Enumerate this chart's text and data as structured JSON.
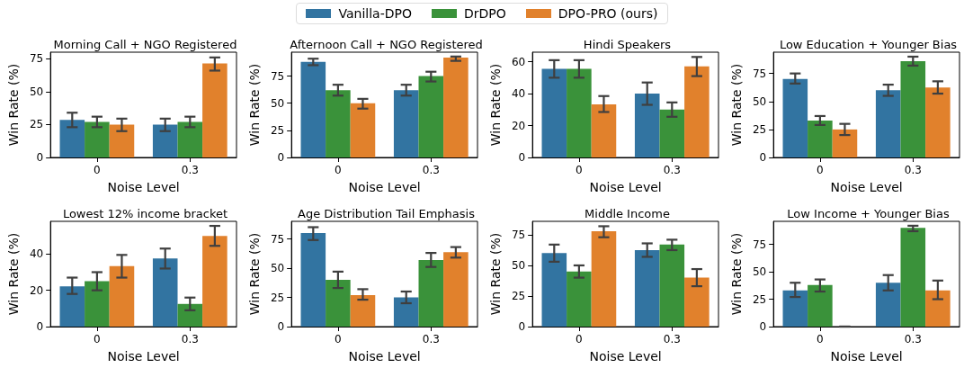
{
  "chart_data": [
    {
      "type": "bar",
      "title": "Morning Call + NGO Registered",
      "xlabel": "Noise Level",
      "ylabel": "Win Rate (%)",
      "categories": [
        "0",
        "0.3"
      ],
      "legend": "top",
      "ylim": [
        0,
        80
      ],
      "yticks": [
        0,
        25,
        50,
        75
      ],
      "series": [
        {
          "name": "Vanilla-DPO",
          "color": "#3274a1",
          "values": [
            28.6,
            25
          ],
          "errors": [
            [
              23,
              34
            ],
            [
              20,
              29.5
            ]
          ]
        },
        {
          "name": "DrDPO",
          "color": "#3a923a",
          "values": [
            27,
            27
          ],
          "errors": [
            [
              23,
              31
            ],
            [
              23,
              31
            ]
          ]
        },
        {
          "name": "DPO-PRO (ours)",
          "color": "#e1812c",
          "values": [
            25,
            71.4
          ],
          "errors": [
            [
              20,
              29.5
            ],
            [
              66,
              76
            ]
          ]
        }
      ]
    },
    {
      "type": "bar",
      "title": "Afternoon Call + NGO Registered",
      "xlabel": "Noise Level",
      "ylabel": "Win Rate (%)",
      "categories": [
        "0",
        "0.3"
      ],
      "ylim": [
        0,
        97
      ],
      "yticks": [
        0,
        25,
        50,
        75
      ],
      "series": [
        {
          "color": "#3274a1",
          "values": [
            88,
            62
          ],
          "errors": [
            [
              85,
              91
            ],
            [
              57,
              67
            ]
          ]
        },
        {
          "color": "#3a923a",
          "values": [
            62,
            75
          ],
          "errors": [
            [
              57,
              67
            ],
            [
              70,
              79
            ]
          ]
        },
        {
          "color": "#e1812c",
          "values": [
            50,
            92
          ],
          "errors": [
            [
              45,
              54
            ],
            [
              89,
              93
            ]
          ]
        }
      ]
    },
    {
      "type": "bar",
      "title": "Hindi Speakers",
      "xlabel": "Noise Level",
      "ylabel": "Win Rate (%)",
      "categories": [
        "0",
        "0.3"
      ],
      "ylim": [
        0,
        66
      ],
      "yticks": [
        0,
        20,
        40,
        60
      ],
      "series": [
        {
          "color": "#3274a1",
          "values": [
            55.6,
            40
          ],
          "errors": [
            [
              50,
              61
            ],
            [
              33,
              47
            ]
          ]
        },
        {
          "color": "#3a923a",
          "values": [
            55.6,
            30
          ],
          "errors": [
            [
              50,
              61
            ],
            [
              25.5,
              34.5
            ]
          ]
        },
        {
          "color": "#e1812c",
          "values": [
            33.3,
            57.1
          ],
          "errors": [
            [
              28.5,
              38.5
            ],
            [
              51,
              63
            ]
          ]
        }
      ]
    },
    {
      "type": "bar",
      "title": "Low Education + Younger Bias",
      "xlabel": "Noise Level",
      "ylabel": "Win Rate (%)",
      "categories": [
        "0",
        "0.3"
      ],
      "ylim": [
        0,
        94
      ],
      "yticks": [
        0,
        25,
        50,
        75
      ],
      "series": [
        {
          "color": "#3274a1",
          "values": [
            70,
            60
          ],
          "errors": [
            [
              66,
              75
            ],
            [
              55,
              65
            ]
          ]
        },
        {
          "color": "#3a923a",
          "values": [
            33,
            86
          ],
          "errors": [
            [
              29,
              37
            ],
            [
              82,
              90
            ]
          ]
        },
        {
          "color": "#e1812c",
          "values": [
            25,
            62.5
          ],
          "errors": [
            [
              20,
              30
            ],
            [
              57,
              68
            ]
          ]
        }
      ]
    },
    {
      "type": "bar",
      "title": "Lowest 12% income bracket",
      "xlabel": "Noise Level",
      "ylabel": "Win Rate (%)",
      "categories": [
        "0",
        "0.3"
      ],
      "ylim": [
        0,
        58
      ],
      "yticks": [
        0,
        20,
        40
      ],
      "series": [
        {
          "color": "#3274a1",
          "values": [
            22.2,
            37.5
          ],
          "errors": [
            [
              18,
              27
            ],
            [
              32,
              43
            ]
          ]
        },
        {
          "color": "#3a923a",
          "values": [
            25,
            12.5
          ],
          "errors": [
            [
              20,
              30
            ],
            [
              9,
              16
            ]
          ]
        },
        {
          "color": "#e1812c",
          "values": [
            33.3,
            50
          ],
          "errors": [
            [
              27,
              39.5
            ],
            [
              44.5,
              55.5
            ]
          ]
        }
      ]
    },
    {
      "type": "bar",
      "title": "Age Distribution Tail Emphasis",
      "xlabel": "Noise Level",
      "ylabel": "Win Rate (%)",
      "categories": [
        "0",
        "0.3"
      ],
      "ylim": [
        0,
        90
      ],
      "yticks": [
        0,
        25,
        50,
        75
      ],
      "series": [
        {
          "color": "#3274a1",
          "values": [
            80,
            25
          ],
          "errors": [
            [
              74,
              85
            ],
            [
              20,
              30
            ]
          ]
        },
        {
          "color": "#3a923a",
          "values": [
            40,
            57
          ],
          "errors": [
            [
              33,
              47
            ],
            [
              51,
              63
            ]
          ]
        },
        {
          "color": "#e1812c",
          "values": [
            27,
            63.6
          ],
          "errors": [
            [
              23,
              32
            ],
            [
              59,
              68
            ]
          ]
        }
      ]
    },
    {
      "type": "bar",
      "title": "Middle Income",
      "xlabel": "Noise Level",
      "ylabel": "Win Rate (%)",
      "categories": [
        "0",
        "0.3"
      ],
      "ylim": [
        0,
        86
      ],
      "yticks": [
        0,
        25,
        50,
        75
      ],
      "series": [
        {
          "color": "#3274a1",
          "values": [
            60,
            62.5
          ],
          "errors": [
            [
              53,
              67
            ],
            [
              57,
              68
            ]
          ]
        },
        {
          "color": "#3a923a",
          "values": [
            45,
            67
          ],
          "errors": [
            [
              40,
              50
            ],
            [
              62.5,
              71
            ]
          ]
        },
        {
          "color": "#e1812c",
          "values": [
            78,
            40
          ],
          "errors": [
            [
              73,
              82
            ],
            [
              33,
              47
            ]
          ]
        }
      ]
    },
    {
      "type": "bar",
      "title": "Low Income + Younger Bias",
      "xlabel": "Noise Level",
      "ylabel": "Win Rate (%)",
      "categories": [
        "0",
        "0.3"
      ],
      "ylim": [
        0,
        96
      ],
      "yticks": [
        0,
        25,
        50,
        75
      ],
      "series": [
        {
          "color": "#3274a1",
          "values": [
            33,
            40
          ],
          "errors": [
            [
              27,
              40
            ],
            [
              33,
              47
            ]
          ]
        },
        {
          "color": "#3a923a",
          "values": [
            38,
            90
          ],
          "errors": [
            [
              32,
              43
            ],
            [
              87,
              92
            ]
          ]
        },
        {
          "color": "#e1812c",
          "values": [
            0,
            33
          ],
          "errors": [
            [
              0,
              0
            ],
            [
              25,
              42
            ]
          ]
        }
      ]
    }
  ]
}
